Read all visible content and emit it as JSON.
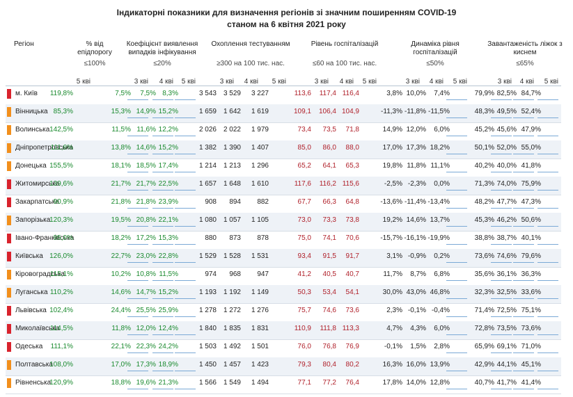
{
  "title_line1": "Індикаторні показники для визначення регіонів зі значним поширенням COVID-19",
  "title_line2": "станом на 6 квітня 2021 року",
  "headers": {
    "region": "Регіон",
    "epid": "% від епідпорогу",
    "epid_thr": "≤100%",
    "coef": "Коефіцієнт виявлення випадків інфікування",
    "coef_thr": "≤20%",
    "test": "Охоплення тестуванням",
    "test_thr": "≥300 на 100 тис. нас.",
    "hosp": "Рівень госпіталізацій",
    "hosp_thr": "≤60 на 100 тис. нас.",
    "dyn": "Динаміка рівня госпіталізацій",
    "dyn_thr": "≤50%",
    "beds": "Завантаженість ліжок з киснем",
    "beds_thr": "≤65%"
  },
  "weeks": {
    "w3": "3 кві",
    "w4": "4 кві",
    "w5": "5 кві"
  },
  "colors": {
    "red": "#d9232d",
    "orange": "#f28f1c",
    "green": "#1a8a2e",
    "darkred": "#b0202a"
  },
  "rows": [
    {
      "name": "м. Київ",
      "status": "red",
      "epid": "119,8%",
      "coef": [
        "7,5%",
        "7,5%",
        "8,3%"
      ],
      "test": [
        "3 543",
        "3 529",
        "3 227"
      ],
      "hosp": [
        "113,6",
        "117,4",
        "116,4"
      ],
      "dyn": [
        "3,8%",
        "10,0%",
        "7,4%"
      ],
      "beds": [
        "79,9%",
        "82,5%",
        "84,7%"
      ]
    },
    {
      "name": "Вінницька",
      "status": "orange",
      "epid": "85,3%",
      "coef": [
        "15,3%",
        "14,9%",
        "15,2%"
      ],
      "test": [
        "1 659",
        "1 642",
        "1 619"
      ],
      "hosp": [
        "109,1",
        "106,4",
        "104,9"
      ],
      "dyn": [
        "-11,3%",
        "-11,8%",
        "-11,5%"
      ],
      "beds": [
        "48,3%",
        "49,5%",
        "52,4%"
      ]
    },
    {
      "name": "Волинська",
      "status": "orange",
      "epid": "142,5%",
      "coef": [
        "11,5%",
        "11,6%",
        "12,2%"
      ],
      "test": [
        "2 026",
        "2 022",
        "1 979"
      ],
      "hosp": [
        "73,4",
        "73,5",
        "71,8"
      ],
      "dyn": [
        "14,9%",
        "12,0%",
        "6,0%"
      ],
      "beds": [
        "45,2%",
        "45,6%",
        "47,9%"
      ]
    },
    {
      "name": "Дніпропетровська",
      "status": "orange",
      "epid": "111,6%",
      "coef": [
        "13,8%",
        "14,6%",
        "15,2%"
      ],
      "test": [
        "1 382",
        "1 390",
        "1 407"
      ],
      "hosp": [
        "85,0",
        "86,0",
        "88,0"
      ],
      "dyn": [
        "17,0%",
        "17,3%",
        "18,2%"
      ],
      "beds": [
        "50,1%",
        "52,0%",
        "55,0%"
      ]
    },
    {
      "name": "Донецька",
      "status": "orange",
      "epid": "155,5%",
      "coef": [
        "18,1%",
        "18,5%",
        "17,4%"
      ],
      "test": [
        "1 214",
        "1 213",
        "1 296"
      ],
      "hosp": [
        "65,2",
        "64,1",
        "65,3"
      ],
      "dyn": [
        "19,8%",
        "11,8%",
        "11,1%"
      ],
      "beds": [
        "40,2%",
        "40,0%",
        "41,8%"
      ]
    },
    {
      "name": "Житомирська",
      "status": "red",
      "epid": "139,6%",
      "coef": [
        "21,7%",
        "21,7%",
        "22,5%"
      ],
      "test": [
        "1 657",
        "1 648",
        "1 610"
      ],
      "hosp": [
        "117,6",
        "116,2",
        "115,6"
      ],
      "dyn": [
        "-2,5%",
        "-2,3%",
        "0,0%"
      ],
      "beds": [
        "71,3%",
        "74,0%",
        "75,9%"
      ]
    },
    {
      "name": "Закарпатська",
      "status": "red",
      "epid": "90,9%",
      "coef": [
        "21,8%",
        "21,8%",
        "23,9%"
      ],
      "test": [
        "908",
        "894",
        "882"
      ],
      "hosp": [
        "67,7",
        "66,3",
        "64,8"
      ],
      "dyn": [
        "-13,6%",
        "-11,4%",
        "-13,4%"
      ],
      "beds": [
        "48,2%",
        "47,7%",
        "47,3%"
      ]
    },
    {
      "name": "Запорізька",
      "status": "orange",
      "epid": "120,3%",
      "coef": [
        "19,5%",
        "20,8%",
        "22,1%"
      ],
      "test": [
        "1 080",
        "1 057",
        "1 105"
      ],
      "hosp": [
        "73,0",
        "73,3",
        "73,8"
      ],
      "dyn": [
        "19,2%",
        "14,6%",
        "13,7%"
      ],
      "beds": [
        "45,3%",
        "46,2%",
        "50,6%"
      ]
    },
    {
      "name": "Івано-Франківська",
      "status": "red",
      "epid": "95,0%",
      "coef": [
        "18,2%",
        "17,2%",
        "15,3%"
      ],
      "test": [
        "880",
        "873",
        "878"
      ],
      "hosp": [
        "75,0",
        "74,1",
        "70,6"
      ],
      "dyn": [
        "-15,7%",
        "-16,1%",
        "-19,9%"
      ],
      "beds": [
        "38,8%",
        "38,7%",
        "40,1%"
      ]
    },
    {
      "name": "Київська",
      "status": "red",
      "epid": "126,0%",
      "coef": [
        "22,7%",
        "23,0%",
        "22,8%"
      ],
      "test": [
        "1 529",
        "1 528",
        "1 531"
      ],
      "hosp": [
        "93,4",
        "91,5",
        "91,7"
      ],
      "dyn": [
        "3,1%",
        "-0,9%",
        "0,2%"
      ],
      "beds": [
        "73,6%",
        "74,6%",
        "79,6%"
      ]
    },
    {
      "name": "Кіровоградська",
      "status": "orange",
      "epid": "115,1%",
      "coef": [
        "10,2%",
        "10,8%",
        "11,5%"
      ],
      "test": [
        "974",
        "968",
        "947"
      ],
      "hosp": [
        "41,2",
        "40,5",
        "40,7"
      ],
      "dyn": [
        "11,7%",
        "8,7%",
        "6,8%"
      ],
      "beds": [
        "35,6%",
        "36,1%",
        "36,3%"
      ]
    },
    {
      "name": "Луганська",
      "status": "orange",
      "epid": "110,2%",
      "coef": [
        "14,6%",
        "14,7%",
        "15,2%"
      ],
      "test": [
        "1 193",
        "1 192",
        "1 149"
      ],
      "hosp": [
        "50,3",
        "53,4",
        "54,1"
      ],
      "dyn": [
        "30,0%",
        "43,0%",
        "46,8%"
      ],
      "beds": [
        "32,3%",
        "32,5%",
        "33,6%"
      ]
    },
    {
      "name": "Львівська",
      "status": "red",
      "epid": "102,4%",
      "coef": [
        "24,4%",
        "25,5%",
        "25,9%"
      ],
      "test": [
        "1 278",
        "1 272",
        "1 276"
      ],
      "hosp": [
        "75,7",
        "74,6",
        "73,6"
      ],
      "dyn": [
        "2,3%",
        "-0,1%",
        "-0,4%"
      ],
      "beds": [
        "71,4%",
        "72,5%",
        "75,1%"
      ]
    },
    {
      "name": "Миколаївська",
      "status": "red",
      "epid": "114,5%",
      "coef": [
        "11,8%",
        "12,0%",
        "12,4%"
      ],
      "test": [
        "1 840",
        "1 835",
        "1 831"
      ],
      "hosp": [
        "110,9",
        "111,8",
        "113,3"
      ],
      "dyn": [
        "4,7%",
        "4,3%",
        "6,0%"
      ],
      "beds": [
        "72,8%",
        "73,5%",
        "73,6%"
      ]
    },
    {
      "name": "Одеська",
      "status": "red",
      "epid": "111,1%",
      "coef": [
        "22,1%",
        "22,3%",
        "24,2%"
      ],
      "test": [
        "1 503",
        "1 492",
        "1 501"
      ],
      "hosp": [
        "76,0",
        "76,8",
        "76,9"
      ],
      "dyn": [
        "-0,1%",
        "1,5%",
        "2,8%"
      ],
      "beds": [
        "65,9%",
        "69,1%",
        "71,0%"
      ]
    },
    {
      "name": "Полтавська",
      "status": "orange",
      "epid": "108,0%",
      "coef": [
        "17,0%",
        "17,3%",
        "18,9%"
      ],
      "test": [
        "1 450",
        "1 457",
        "1 423"
      ],
      "hosp": [
        "79,3",
        "80,4",
        "80,2"
      ],
      "dyn": [
        "16,3%",
        "16,0%",
        "13,9%"
      ],
      "beds": [
        "42,9%",
        "44,1%",
        "45,1%"
      ]
    },
    {
      "name": "Рівненська",
      "status": "orange",
      "epid": "120,9%",
      "coef": [
        "18,8%",
        "19,6%",
        "21,3%"
      ],
      "test": [
        "1 566",
        "1 549",
        "1 494"
      ],
      "hosp": [
        "77,1",
        "77,2",
        "76,4"
      ],
      "dyn": [
        "17,8%",
        "14,0%",
        "12,8%"
      ],
      "beds": [
        "40,7%",
        "41,7%",
        "41,4%"
      ]
    }
  ]
}
